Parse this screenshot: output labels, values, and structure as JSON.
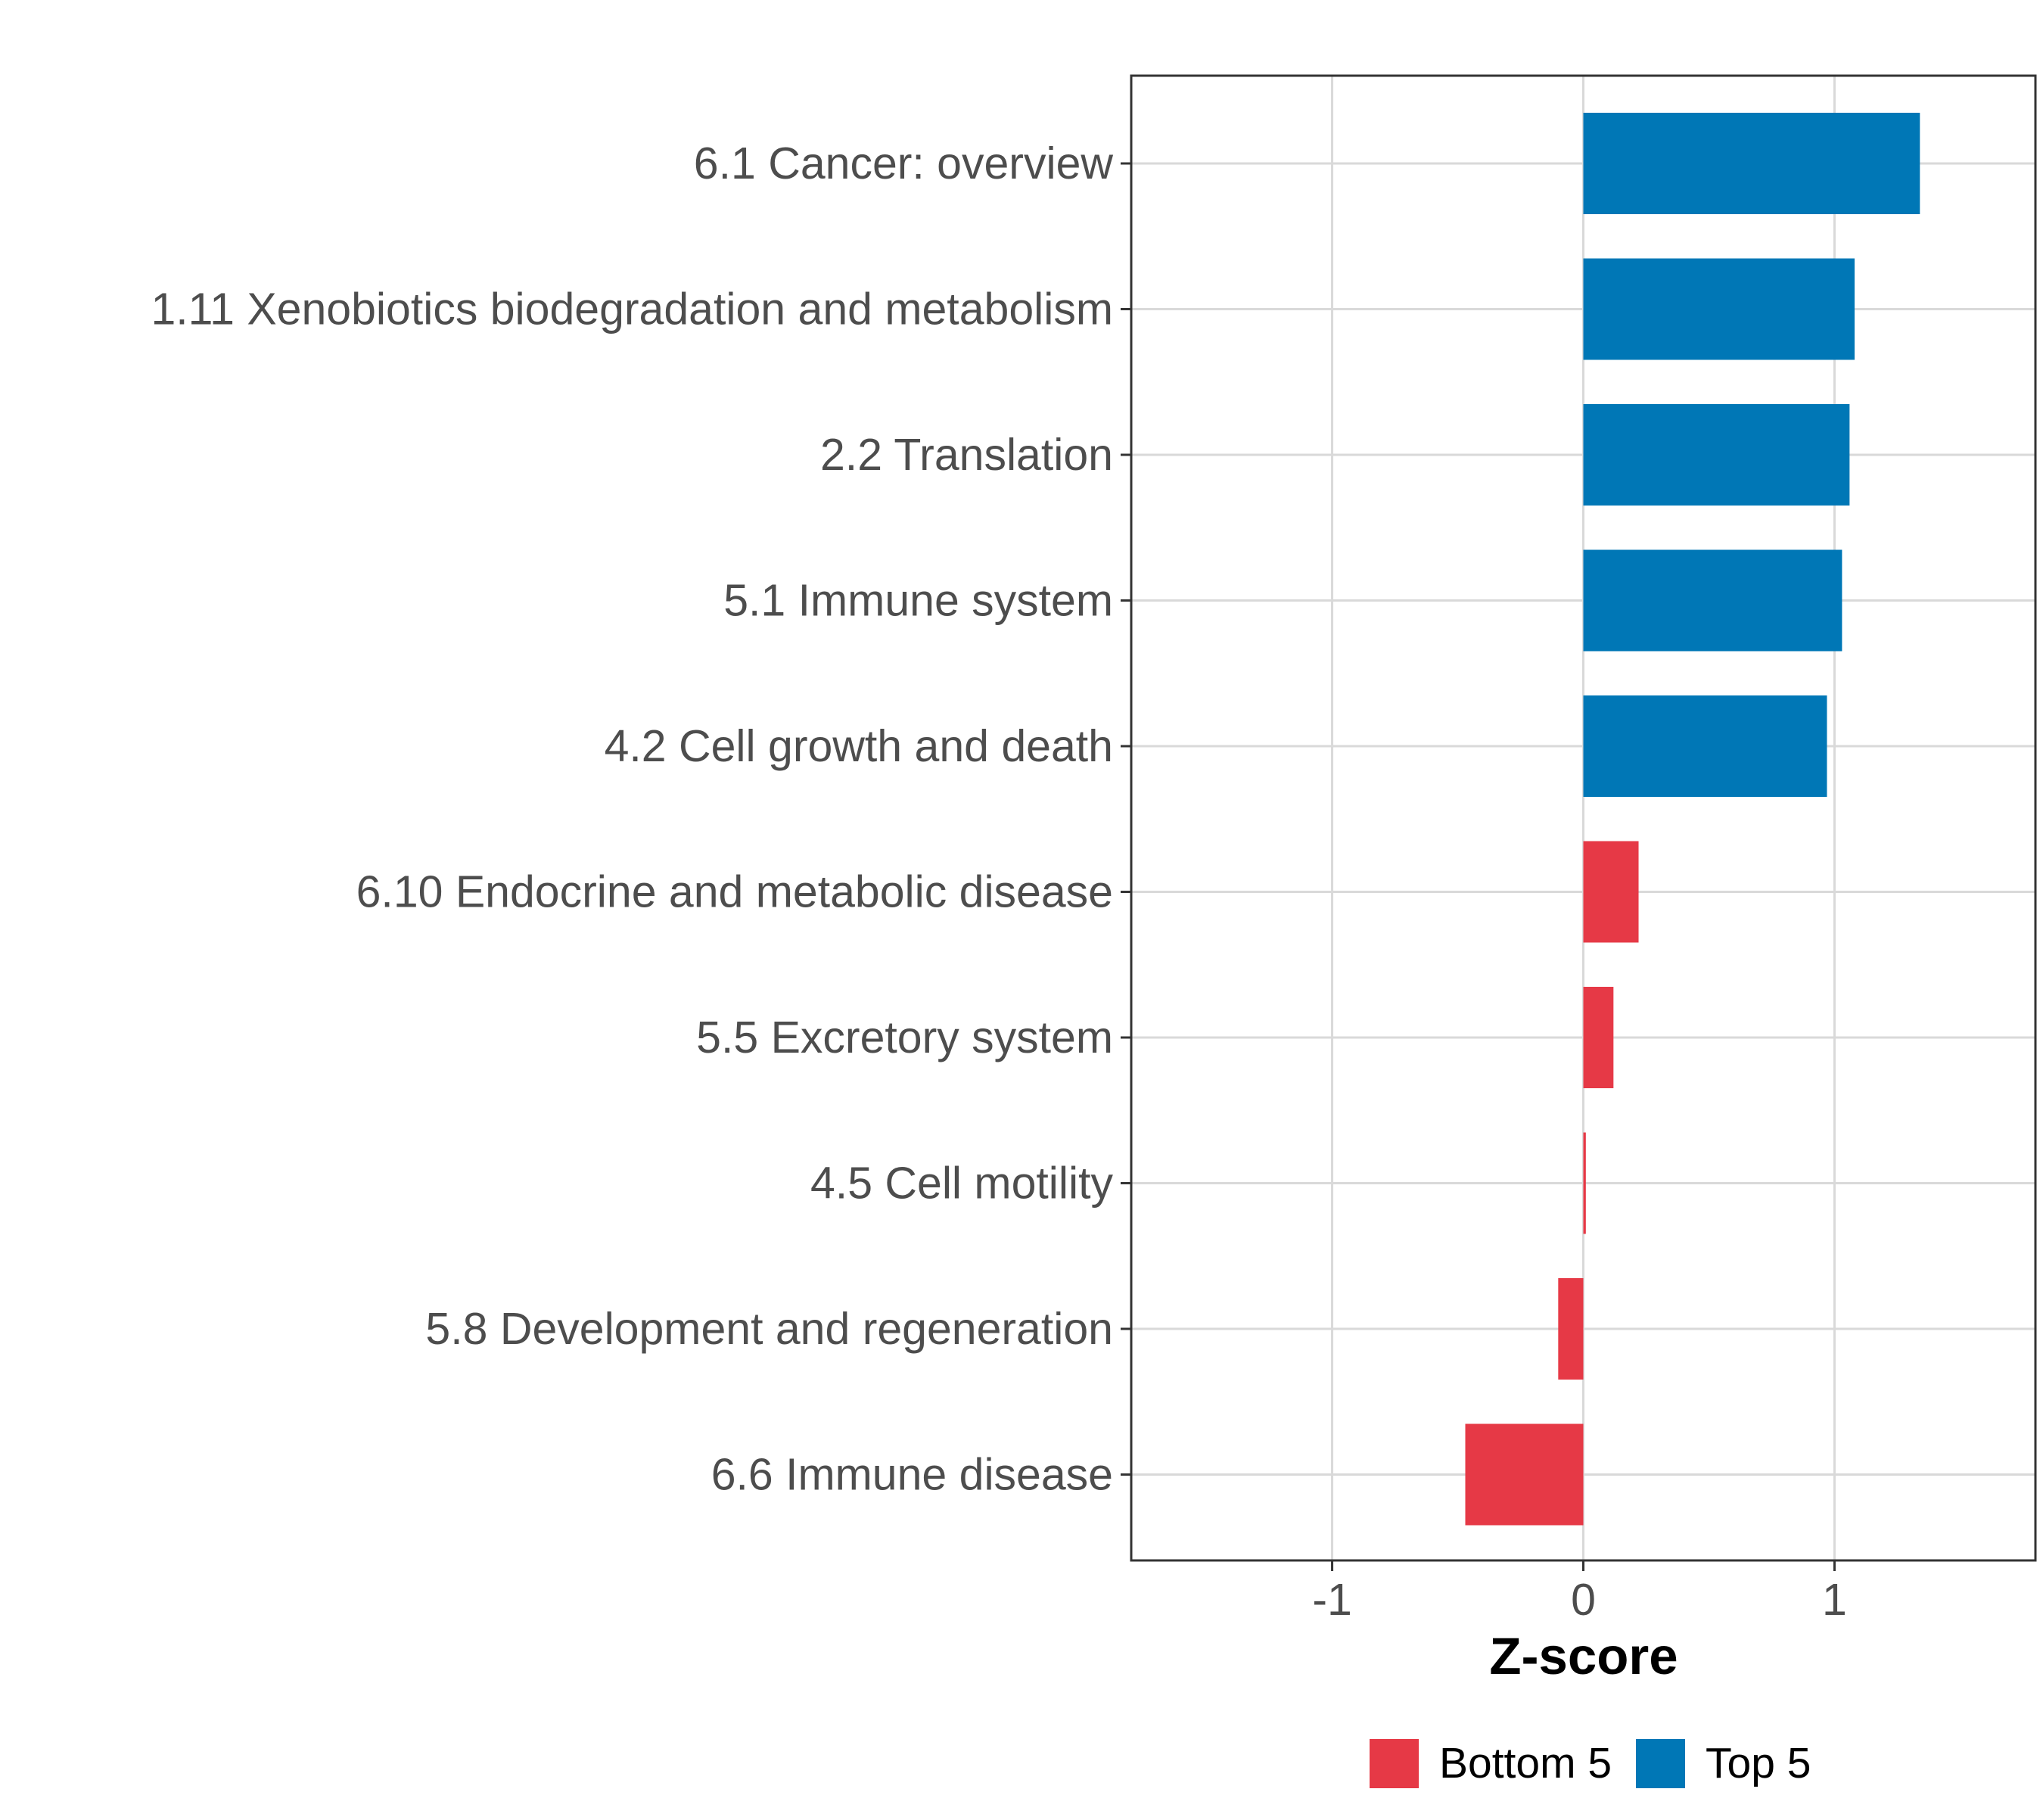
{
  "chart_data": {
    "type": "bar",
    "orientation": "horizontal",
    "categories": [
      "6.1 Cancer: overview",
      "1.11 Xenobiotics biodegradation and metabolism",
      "2.2 Translation",
      "5.1 Immune system",
      "4.2 Cell growth and death",
      "6.10 Endocrine and metabolic disease",
      "5.5 Excretory system",
      "4.5 Cell motility",
      "5.8 Development and regeneration",
      "6.6 Immune disease"
    ],
    "values": [
      1.34,
      1.08,
      1.06,
      1.03,
      0.97,
      0.22,
      0.12,
      0.01,
      -0.1,
      -0.47
    ],
    "groups": [
      "Top 5",
      "Top 5",
      "Top 5",
      "Top 5",
      "Top 5",
      "Bottom 5",
      "Bottom 5",
      "Bottom 5",
      "Bottom 5",
      "Bottom 5"
    ],
    "xlim": [
      -1.8,
      1.8
    ],
    "xticks": [
      -1,
      0,
      1
    ],
    "xtick_labels": [
      "-1",
      "0",
      "1"
    ],
    "xlabel": "Z-score",
    "ylabel": "",
    "title": "",
    "grid": true,
    "legend": {
      "position": "bottom",
      "entries": [
        {
          "label": "Bottom 5",
          "color": "#e63946"
        },
        {
          "label": "Top 5",
          "color": "#0077b6"
        }
      ]
    },
    "colors": {
      "Top 5": "#0077b6",
      "Bottom 5": "#e63946"
    }
  }
}
